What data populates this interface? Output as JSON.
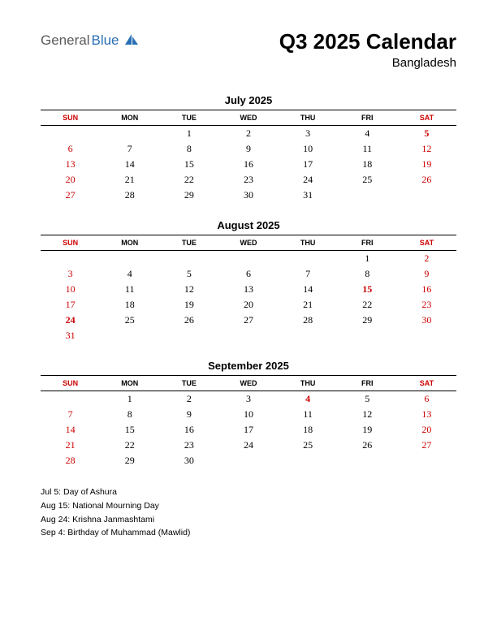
{
  "logo": {
    "text1": "General",
    "text2": "Blue",
    "color1": "#5a5a5a",
    "color2": "#2a6fb5",
    "icon_color": "#2a6fb5"
  },
  "title": "Q3 2025 Calendar",
  "subtitle": "Bangladesh",
  "colors": {
    "text": "#000000",
    "weekend": "#cc0000",
    "holiday": "#cc0000",
    "border": "#000000",
    "background": "#ffffff"
  },
  "day_headers": [
    "SUN",
    "MON",
    "TUE",
    "WED",
    "THU",
    "FRI",
    "SAT"
  ],
  "weekend_cols": [
    0,
    6
  ],
  "months": [
    {
      "name": "July 2025",
      "weeks": [
        [
          "",
          "",
          "1",
          "2",
          "3",
          "4",
          "5"
        ],
        [
          "6",
          "7",
          "8",
          "9",
          "10",
          "11",
          "12"
        ],
        [
          "13",
          "14",
          "15",
          "16",
          "17",
          "18",
          "19"
        ],
        [
          "20",
          "21",
          "22",
          "23",
          "24",
          "25",
          "26"
        ],
        [
          "27",
          "28",
          "29",
          "30",
          "31",
          "",
          ""
        ]
      ],
      "holidays": [
        [
          0,
          6
        ]
      ]
    },
    {
      "name": "August 2025",
      "weeks": [
        [
          "",
          "",
          "",
          "",
          "",
          "1",
          "2"
        ],
        [
          "3",
          "4",
          "5",
          "6",
          "7",
          "8",
          "9"
        ],
        [
          "10",
          "11",
          "12",
          "13",
          "14",
          "15",
          "16"
        ],
        [
          "17",
          "18",
          "19",
          "20",
          "21",
          "22",
          "23"
        ],
        [
          "24",
          "25",
          "26",
          "27",
          "28",
          "29",
          "30"
        ],
        [
          "31",
          "",
          "",
          "",
          "",
          "",
          ""
        ]
      ],
      "holidays": [
        [
          2,
          5
        ],
        [
          4,
          0
        ]
      ]
    },
    {
      "name": "September 2025",
      "weeks": [
        [
          "",
          "1",
          "2",
          "3",
          "4",
          "5",
          "6"
        ],
        [
          "7",
          "8",
          "9",
          "10",
          "11",
          "12",
          "13"
        ],
        [
          "14",
          "15",
          "16",
          "17",
          "18",
          "19",
          "20"
        ],
        [
          "21",
          "22",
          "23",
          "24",
          "25",
          "26",
          "27"
        ],
        [
          "28",
          "29",
          "30",
          "",
          "",
          "",
          ""
        ]
      ],
      "holidays": [
        [
          0,
          4
        ]
      ]
    }
  ],
  "holiday_list": [
    "Jul 5: Day of Ashura",
    "Aug 15: National Mourning Day",
    "Aug 24: Krishna Janmashtami",
    "Sep 4: Birthday of Muhammad (Mawlid)"
  ]
}
